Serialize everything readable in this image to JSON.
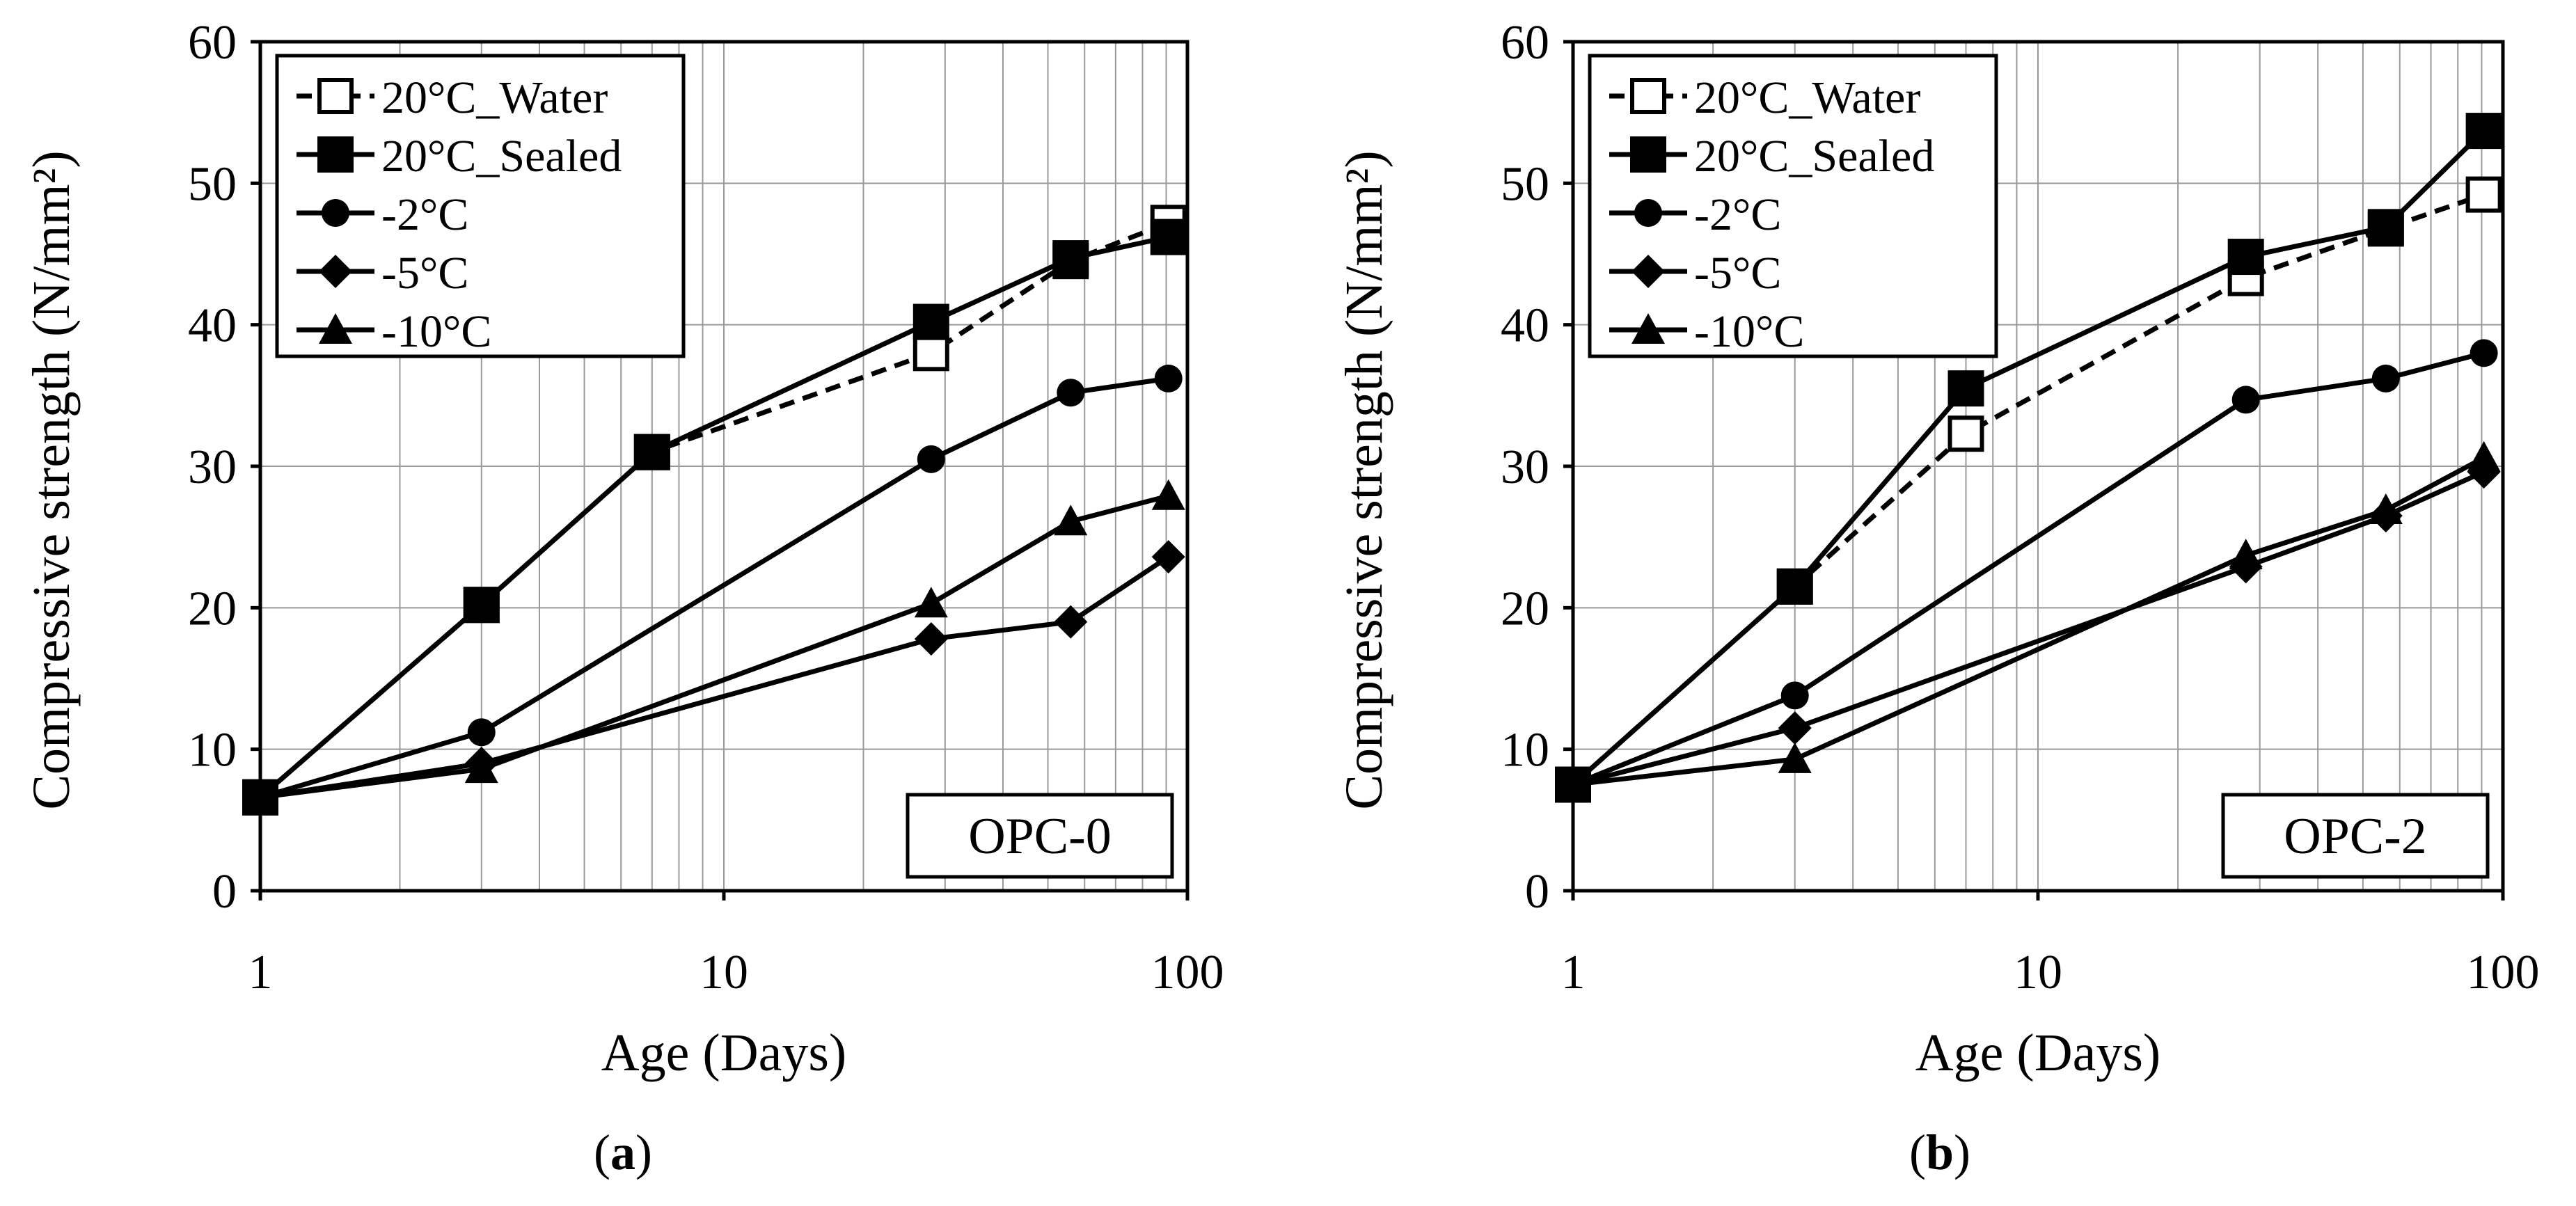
{
  "panels": [
    {
      "open": "(",
      "letter": "a",
      "close": ")"
    },
    {
      "open": "(",
      "letter": "b",
      "close": ")"
    }
  ],
  "chart_data": [
    {
      "type": "line",
      "panel_label": "OPC-0",
      "xlabel": "Age (Days)",
      "ylabel": "Compressive strength (N/mm²)",
      "xscale": "log",
      "xlim": [
        1,
        100
      ],
      "ylim": [
        0,
        60
      ],
      "xticks": [
        "1",
        "10",
        "100"
      ],
      "yticks": [
        "0",
        "10",
        "20",
        "30",
        "40",
        "50",
        "60"
      ],
      "grid": true,
      "legend_position": "top-left",
      "series": [
        {
          "name": "20°C_Water",
          "marker": "square-open",
          "line": "dashed",
          "x": [
            1,
            3,
            7,
            28,
            56,
            91
          ],
          "y": [
            6.6,
            20.2,
            31.0,
            38.0,
            44.5,
            47.2
          ]
        },
        {
          "name": "20°C_Sealed",
          "marker": "square",
          "line": "solid",
          "x": [
            1,
            3,
            7,
            28,
            56,
            91
          ],
          "y": [
            6.6,
            20.2,
            31.0,
            40.2,
            44.7,
            46.2
          ]
        },
        {
          "name": "-2°C",
          "marker": "circle",
          "line": "solid",
          "x": [
            1,
            3,
            28,
            56,
            91
          ],
          "y": [
            6.6,
            11.2,
            30.5,
            35.2,
            36.2
          ]
        },
        {
          "name": "-5°C",
          "marker": "diamond",
          "line": "solid",
          "x": [
            1,
            3,
            28,
            56,
            91
          ],
          "y": [
            6.6,
            9.0,
            17.8,
            19.0,
            23.6
          ]
        },
        {
          "name": "-10°C",
          "marker": "triangle",
          "line": "solid",
          "x": [
            1,
            3,
            28,
            56,
            91
          ],
          "y": [
            6.6,
            8.6,
            20.3,
            26.1,
            27.9
          ]
        }
      ]
    },
    {
      "type": "line",
      "panel_label": "OPC-2",
      "xlabel": "Age (Days)",
      "ylabel": "Compressive strength (N/mm²)",
      "xscale": "log",
      "xlim": [
        1,
        100
      ],
      "ylim": [
        0,
        60
      ],
      "xticks": [
        "1",
        "10",
        "100"
      ],
      "yticks": [
        "0",
        "10",
        "20",
        "30",
        "40",
        "50",
        "60"
      ],
      "grid": true,
      "legend_position": "top-left",
      "series": [
        {
          "name": "20°C_Water",
          "marker": "square-open",
          "line": "dashed",
          "x": [
            1,
            3,
            7,
            28,
            56,
            91
          ],
          "y": [
            7.5,
            21.5,
            32.3,
            43.3,
            46.8,
            49.2
          ]
        },
        {
          "name": "20°C_Sealed",
          "marker": "square",
          "line": "solid",
          "x": [
            1,
            3,
            7,
            28,
            56,
            91
          ],
          "y": [
            7.5,
            21.5,
            35.5,
            44.8,
            46.9,
            53.7
          ]
        },
        {
          "name": "-2°C",
          "marker": "circle",
          "line": "solid",
          "x": [
            1,
            3,
            28,
            56,
            91
          ],
          "y": [
            7.5,
            13.8,
            34.7,
            36.2,
            38.0
          ]
        },
        {
          "name": "-5°C",
          "marker": "diamond",
          "line": "solid",
          "x": [
            1,
            3,
            28,
            56,
            91
          ],
          "y": [
            7.5,
            11.5,
            22.9,
            26.5,
            29.6
          ]
        },
        {
          "name": "-10°C",
          "marker": "triangle",
          "line": "solid",
          "x": [
            1,
            3,
            28,
            56,
            91
          ],
          "y": [
            7.5,
            9.3,
            23.7,
            26.9,
            30.6
          ]
        }
      ]
    }
  ]
}
